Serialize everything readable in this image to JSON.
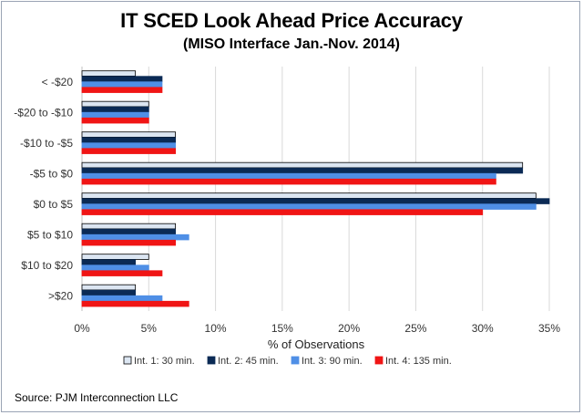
{
  "chart_data": {
    "type": "bar",
    "orientation": "horizontal",
    "title": "IT SCED Look Ahead Price Accuracy",
    "subtitle": "(MISO Interface Jan.-Nov. 2014)",
    "xlabel": "% of Observations",
    "ylabel": "",
    "xlim": [
      0,
      35
    ],
    "x_ticks": [
      "0%",
      "5%",
      "10%",
      "15%",
      "20%",
      "25%",
      "30%",
      "35%"
    ],
    "grid": "vertical",
    "legend_position": "bottom",
    "categories": [
      "< -$20",
      "-$20 to -$10",
      "-$10 to -$5",
      "-$5 to $0",
      "$0 to $5",
      "$5 to $10",
      "$10 to $20",
      ">$20"
    ],
    "series": [
      {
        "name": "Int. 1: 30 min.",
        "color": "#dce6f2",
        "stroke": "#000000",
        "values": [
          4,
          5,
          7,
          33,
          34,
          7,
          5,
          4
        ]
      },
      {
        "name": "Int. 2: 45 min.",
        "color": "#0b2a55",
        "stroke": "#0b2a55",
        "values": [
          6,
          5,
          7,
          33,
          35,
          7,
          4,
          4
        ]
      },
      {
        "name": "Int. 3: 90 min.",
        "color": "#4f8fe6",
        "stroke": "#4f8fe6",
        "values": [
          6,
          5,
          7,
          31,
          34,
          8,
          5,
          6
        ]
      },
      {
        "name": "Int. 4: 135 min.",
        "color": "#f01515",
        "stroke": "#f01515",
        "values": [
          6,
          5,
          7,
          31,
          30,
          7,
          6,
          8
        ]
      }
    ]
  },
  "source": "Source: PJM Interconnection LLC"
}
